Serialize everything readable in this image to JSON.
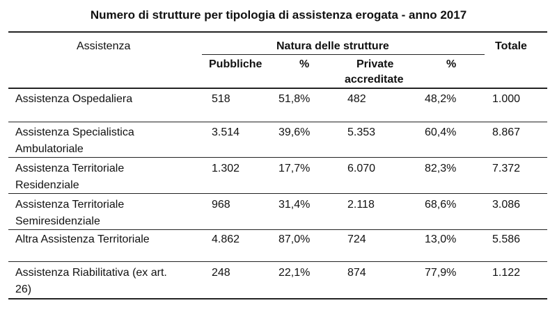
{
  "title": "Numero di strutture per tipologia di assistenza erogata - anno 2017",
  "headers": {
    "assistenza": "Assistenza",
    "natura": "Natura delle strutture",
    "totale": "Totale",
    "pubbliche": "Pubbliche",
    "pct1": "%",
    "private_l1": "Private",
    "private_l2": "accreditate",
    "pct2": "%"
  },
  "rows": [
    {
      "label_l1": "Assistenza Ospedaliera",
      "label_l2": "",
      "pubbliche": "518",
      "pct_pub": "51,8%",
      "private": "482",
      "pct_priv": "48,2%",
      "totale": "1.000"
    },
    {
      "label_l1": "Assistenza Specialistica",
      "label_l2": "Ambulatoriale",
      "pubbliche": "3.514",
      "pct_pub": "39,6%",
      "private": "5.353",
      "pct_priv": "60,4%",
      "totale": "8.867"
    },
    {
      "label_l1": "Assistenza Territoriale",
      "label_l2": "Residenziale",
      "pubbliche": "1.302",
      "pct_pub": "17,7%",
      "private": "6.070",
      "pct_priv": "82,3%",
      "totale": "7.372"
    },
    {
      "label_l1": "Assistenza Territoriale",
      "label_l2": "Semiresidenziale",
      "pubbliche": "968",
      "pct_pub": "31,4%",
      "private": "2.118",
      "pct_priv": "68,6%",
      "totale": "3.086"
    },
    {
      "label_l1": "Altra Assistenza Territoriale",
      "label_l2": "",
      "pubbliche": "4.862",
      "pct_pub": "87,0%",
      "private": "724",
      "pct_priv": "13,0%",
      "totale": "5.586"
    },
    {
      "label_l1": "Assistenza Riabilitativa (ex art.",
      "label_l2": "26)",
      "pubbliche": "248",
      "pct_pub": "22,1%",
      "private": "874",
      "pct_priv": "77,9%",
      "totale": "1.122"
    }
  ]
}
